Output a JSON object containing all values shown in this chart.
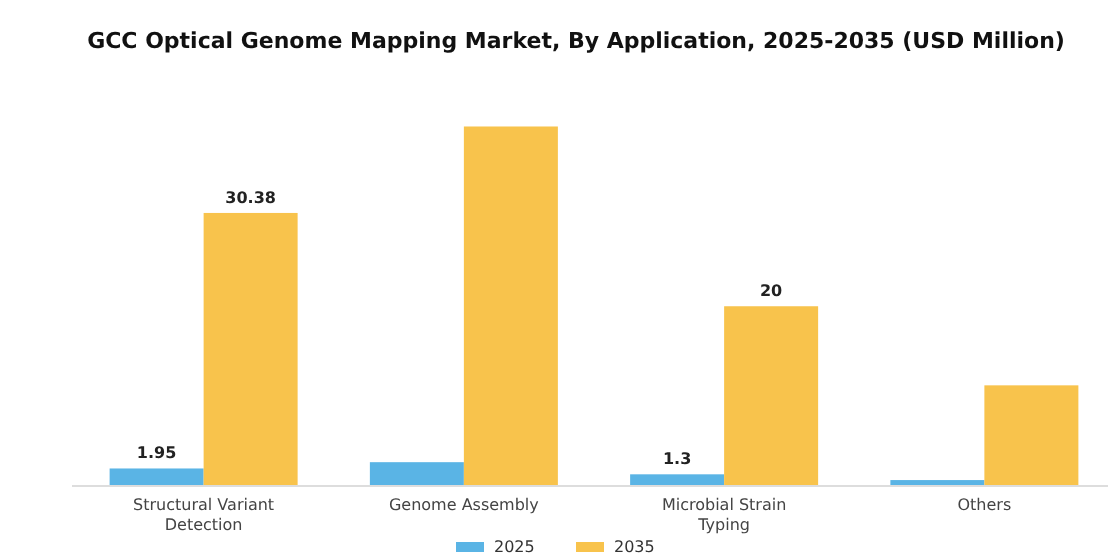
{
  "chart_data": {
    "type": "bar",
    "title": "GCC Optical Genome Mapping Market, By Application, 2025-2035 (USD Million)",
    "categories": [
      "Structural Variant Detection",
      "Genome Assembly",
      "Microbial Strain Typing",
      "Others"
    ],
    "series": [
      {
        "name": "2025",
        "color": "#5ab4e5",
        "values": [
          1.95,
          2.65,
          1.3,
          0.66
        ],
        "value_labels": [
          "1.95",
          null,
          "1.3",
          null
        ]
      },
      {
        "name": "2035",
        "color": "#f8c34c",
        "values": [
          30.38,
          40.0,
          20,
          11.2
        ],
        "value_labels": [
          "30.38",
          null,
          "20",
          null
        ]
      }
    ],
    "ylim": [
      0,
      40.5
    ],
    "legend": "bottom"
  }
}
